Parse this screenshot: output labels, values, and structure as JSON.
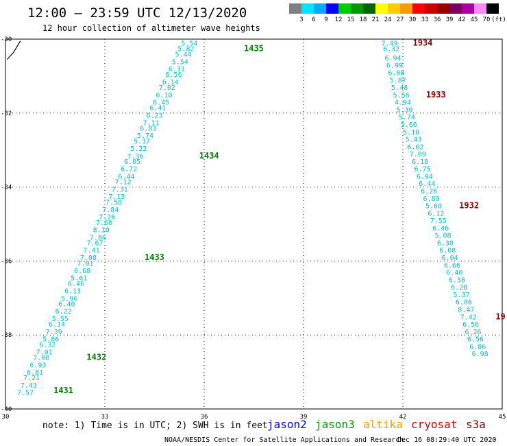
{
  "header": {
    "title": "12:00 – 23:59 UTC 12/13/2020",
    "subtitle": "12 hour collection of altimeter wave heights"
  },
  "colorbar": {
    "colors": [
      "#808080",
      "#00e5ff",
      "#00aaff",
      "#0000ff",
      "#00cc00",
      "#009900",
      "#006600",
      "#ffff00",
      "#ffcc00",
      "#ff9900",
      "#ff0000",
      "#cc0000",
      "#990000",
      "#800060",
      "#aa00aa",
      "#ff88ff",
      "#000000"
    ],
    "labels": [
      "3",
      "6",
      "9",
      "12",
      "15",
      "18",
      "21",
      "24",
      "27",
      "30",
      "33",
      "36",
      "39",
      "42",
      "45",
      "70",
      "(ft)"
    ]
  },
  "notes": {
    "note": "note: 1) Time is in UTC; 2) SWH is in feet",
    "satellites": [
      {
        "name": "jason2",
        "color": "#0000ff"
      },
      {
        "name": "jason3",
        "color": "#009900"
      },
      {
        "name": "altika",
        "color": "#ff9900"
      },
      {
        "name": "cryosat",
        "color": "#cc0000"
      },
      {
        "name": "s3a",
        "color": "#800000"
      }
    ],
    "footer_left": "NOAA/NESDIS Center for Satellite Applications and Research",
    "footer_right": "Dec 16 08:29:40 UTC 2020"
  },
  "chart_data": {
    "type": "scatter",
    "xlim": [
      30,
      45
    ],
    "ylim": [
      -40,
      -30
    ],
    "x_ticks": [
      "30",
      "33",
      "36",
      "39",
      "42",
      "45"
    ],
    "y_ticks": [
      "-30",
      "-32",
      "-34",
      "-36",
      "-38",
      "-40"
    ],
    "grid": true,
    "series": [
      {
        "color": "#00bcd4",
        "time_color": "#008000",
        "points": [
          {
            "x": 35.8,
            "y": -30.1,
            "v": "5.54"
          },
          {
            "x": 35.7,
            "y": -30.25,
            "v": "5.82"
          },
          {
            "x": 35.62,
            "y": -30.4,
            "v": "5.44"
          },
          {
            "x": 35.52,
            "y": -30.6,
            "v": "5.54"
          },
          {
            "x": 35.42,
            "y": -30.8,
            "v": "6.31"
          },
          {
            "x": 35.33,
            "y": -30.95,
            "v": "6.56"
          },
          {
            "x": 35.23,
            "y": -31.15,
            "v": "6.14"
          },
          {
            "x": 35.13,
            "y": -31.3,
            "v": "7.02"
          },
          {
            "x": 35.04,
            "y": -31.5,
            "v": "6.10"
          },
          {
            "x": 34.95,
            "y": -31.7,
            "v": "6.45"
          },
          {
            "x": 34.85,
            "y": -31.85,
            "v": "6.41"
          },
          {
            "x": 34.75,
            "y": -32.05,
            "v": "6.23"
          },
          {
            "x": 34.65,
            "y": -32.25,
            "v": "7.11"
          },
          {
            "x": 34.56,
            "y": -32.4,
            "v": "6.83"
          },
          {
            "x": 34.47,
            "y": -32.6,
            "v": "5.74"
          },
          {
            "x": 34.37,
            "y": -32.75,
            "v": "5.37"
          },
          {
            "x": 34.27,
            "y": -32.95,
            "v": "5.22"
          },
          {
            "x": 34.17,
            "y": -33.15,
            "v": "7.36"
          },
          {
            "x": 34.08,
            "y": -33.3,
            "v": "6.05"
          },
          {
            "x": 33.98,
            "y": -33.5,
            "v": "6.72"
          },
          {
            "x": 33.9,
            "y": -33.7,
            "v": "6.44"
          },
          {
            "x": 33.8,
            "y": -33.85,
            "v": "7.12"
          },
          {
            "x": 33.7,
            "y": -34.05,
            "v": "7.31"
          },
          {
            "x": 33.61,
            "y": -34.25,
            "v": "7.13"
          },
          {
            "x": 33.52,
            "y": -34.4,
            "v": "7.58"
          },
          {
            "x": 33.42,
            "y": -34.6,
            "v": "7.84"
          },
          {
            "x": 33.32,
            "y": -34.8,
            "v": "7.26"
          },
          {
            "x": 33.23,
            "y": -34.95,
            "v": "7.60"
          },
          {
            "x": 33.14,
            "y": -35.15,
            "v": "8.10"
          },
          {
            "x": 33.04,
            "y": -35.35,
            "v": "7.86"
          },
          {
            "x": 32.95,
            "y": -35.5,
            "v": "7.67"
          },
          {
            "x": 32.85,
            "y": -35.7,
            "v": "7.41"
          },
          {
            "x": 32.75,
            "y": -35.9,
            "v": "7.08"
          },
          {
            "x": 32.66,
            "y": -36.05,
            "v": "7.01"
          },
          {
            "x": 32.57,
            "y": -36.25,
            "v": "6.68"
          },
          {
            "x": 32.47,
            "y": -36.45,
            "v": "5.61"
          },
          {
            "x": 32.38,
            "y": -36.6,
            "v": "6.46"
          },
          {
            "x": 32.28,
            "y": -36.8,
            "v": "6.13"
          },
          {
            "x": 32.18,
            "y": -37.0,
            "v": "5.96"
          },
          {
            "x": 32.1,
            "y": -37.15,
            "v": "6.40"
          },
          {
            "x": 32.0,
            "y": -37.35,
            "v": "6.22"
          },
          {
            "x": 31.9,
            "y": -37.55,
            "v": "5.55"
          },
          {
            "x": 31.8,
            "y": -37.7,
            "v": "6.14"
          },
          {
            "x": 31.71,
            "y": -37.9,
            "v": "7.39"
          },
          {
            "x": 31.62,
            "y": -38.1,
            "v": "5.86"
          },
          {
            "x": 31.52,
            "y": -38.25,
            "v": "6.32"
          },
          {
            "x": 31.42,
            "y": -38.45,
            "v": "7.01"
          },
          {
            "x": 31.33,
            "y": -38.6,
            "v": "7.08"
          },
          {
            "x": 31.23,
            "y": -38.8,
            "v": "6.93"
          },
          {
            "x": 31.14,
            "y": -39.0,
            "v": "6.81"
          },
          {
            "x": 31.04,
            "y": -39.15,
            "v": "7.21"
          },
          {
            "x": 30.95,
            "y": -39.35,
            "v": "7.43"
          },
          {
            "x": 30.85,
            "y": -39.55,
            "v": "7.57"
          }
        ],
        "times": [
          {
            "x": 37.2,
            "y": -30.25,
            "t": "1435"
          },
          {
            "x": 35.85,
            "y": -33.15,
            "t": "1434"
          },
          {
            "x": 34.2,
            "y": -35.9,
            "t": "1433"
          },
          {
            "x": 32.45,
            "y": -38.6,
            "t": "1432"
          },
          {
            "x": 31.45,
            "y": -39.5,
            "t": "1431"
          }
        ]
      },
      {
        "color": "#00bcd4",
        "time_color": "#8b0000",
        "points": [
          {
            "x": 41.85,
            "y": -30.1,
            "v": "7.49"
          },
          {
            "x": 41.9,
            "y": -30.25,
            "v": "6.32"
          },
          {
            "x": 41.95,
            "y": -30.5,
            "v": "6.94"
          },
          {
            "x": 42.0,
            "y": -30.7,
            "v": "6.99"
          },
          {
            "x": 42.05,
            "y": -30.9,
            "v": "6.08"
          },
          {
            "x": 42.1,
            "y": -31.1,
            "v": "5.87"
          },
          {
            "x": 42.15,
            "y": -31.3,
            "v": "5.48"
          },
          {
            "x": 42.2,
            "y": -31.5,
            "v": "5.56"
          },
          {
            "x": 42.25,
            "y": -31.7,
            "v": "4.94"
          },
          {
            "x": 42.3,
            "y": -31.9,
            "v": "5.30"
          },
          {
            "x": 42.37,
            "y": -32.1,
            "v": "5.74"
          },
          {
            "x": 42.43,
            "y": -32.3,
            "v": "5.66"
          },
          {
            "x": 42.5,
            "y": -32.5,
            "v": "5.10"
          },
          {
            "x": 42.57,
            "y": -32.7,
            "v": "5.43"
          },
          {
            "x": 42.63,
            "y": -32.9,
            "v": "6.62"
          },
          {
            "x": 42.7,
            "y": -33.1,
            "v": "7.09"
          },
          {
            "x": 42.77,
            "y": -33.3,
            "v": "6.18"
          },
          {
            "x": 42.84,
            "y": -33.5,
            "v": "6.75"
          },
          {
            "x": 42.91,
            "y": -33.7,
            "v": "6.94"
          },
          {
            "x": 42.98,
            "y": -33.9,
            "v": "6.44"
          },
          {
            "x": 43.04,
            "y": -34.1,
            "v": "6.26"
          },
          {
            "x": 43.11,
            "y": -34.3,
            "v": "6.89"
          },
          {
            "x": 43.18,
            "y": -34.5,
            "v": "5.60"
          },
          {
            "x": 43.25,
            "y": -34.7,
            "v": "6.12"
          },
          {
            "x": 43.32,
            "y": -34.9,
            "v": "7.55"
          },
          {
            "x": 43.39,
            "y": -35.1,
            "v": "6.46"
          },
          {
            "x": 43.46,
            "y": -35.3,
            "v": "5.08"
          },
          {
            "x": 43.53,
            "y": -35.5,
            "v": "6.30"
          },
          {
            "x": 43.6,
            "y": -35.7,
            "v": "6.08"
          },
          {
            "x": 43.67,
            "y": -35.9,
            "v": "6.04"
          },
          {
            "x": 43.74,
            "y": -36.1,
            "v": "6.66"
          },
          {
            "x": 43.81,
            "y": -36.3,
            "v": "6.40"
          },
          {
            "x": 43.88,
            "y": -36.5,
            "v": "6.38"
          },
          {
            "x": 43.95,
            "y": -36.7,
            "v": "6.28"
          },
          {
            "x": 44.02,
            "y": -36.9,
            "v": "5.37"
          },
          {
            "x": 44.09,
            "y": -37.1,
            "v": "6.06"
          },
          {
            "x": 44.16,
            "y": -37.3,
            "v": "8.47"
          },
          {
            "x": 44.23,
            "y": -37.5,
            "v": "7.42"
          },
          {
            "x": 44.3,
            "y": -37.7,
            "v": "6.56"
          },
          {
            "x": 44.37,
            "y": -37.9,
            "v": "6.26"
          },
          {
            "x": 44.44,
            "y": -38.1,
            "v": "6.56"
          },
          {
            "x": 44.51,
            "y": -38.3,
            "v": "6.86"
          },
          {
            "x": 44.58,
            "y": -38.5,
            "v": "6.98"
          }
        ],
        "times": [
          {
            "x": 42.3,
            "y": -30.1,
            "t": "1934"
          },
          {
            "x": 42.7,
            "y": -31.5,
            "t": "1933"
          },
          {
            "x": 43.7,
            "y": -34.5,
            "t": "1932"
          },
          {
            "x": 44.8,
            "y": -37.5,
            "t": "19"
          }
        ]
      }
    ],
    "coastline": [
      [
        30.05,
        -30.55
      ],
      [
        30.25,
        -30.35
      ],
      [
        30.45,
        -30.05
      ]
    ]
  }
}
